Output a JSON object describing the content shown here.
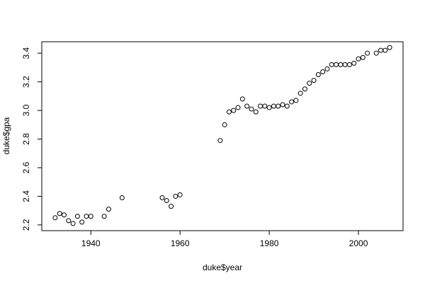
{
  "chart_data": {
    "type": "scatter",
    "title": "",
    "xlabel": "duke$year",
    "ylabel": "duke$gpa",
    "xlim": [
      1929,
      2010
    ],
    "ylim": [
      2.16,
      3.48
    ],
    "grid": false,
    "legend": "none",
    "point_style": "open-circle",
    "colors": {
      "marker": "#000000",
      "axis": "#000000",
      "background": "#ffffff"
    },
    "x_ticks": [
      1940,
      1960,
      1980,
      2000
    ],
    "y_ticks": [
      2.2,
      2.4,
      2.6,
      2.8,
      3.0,
      3.2,
      3.4
    ],
    "x_tick_labels": [
      "1940",
      "1960",
      "1980",
      "2000"
    ],
    "y_tick_labels": [
      "2.2",
      "2.4",
      "2.6",
      "2.8",
      "3.0",
      "3.2",
      "3.4"
    ],
    "points": [
      [
        1932,
        2.25
      ],
      [
        1933,
        2.28
      ],
      [
        1934,
        2.27
      ],
      [
        1935,
        2.23
      ],
      [
        1936,
        2.21
      ],
      [
        1937,
        2.26
      ],
      [
        1938,
        2.22
      ],
      [
        1939,
        2.26
      ],
      [
        1940,
        2.26
      ],
      [
        1943,
        2.26
      ],
      [
        1944,
        2.31
      ],
      [
        1947,
        2.39
      ],
      [
        1956,
        2.39
      ],
      [
        1957,
        2.37
      ],
      [
        1958,
        2.33
      ],
      [
        1959,
        2.4
      ],
      [
        1960,
        2.41
      ],
      [
        1969,
        2.79
      ],
      [
        1970,
        2.9
      ],
      [
        1971,
        2.99
      ],
      [
        1972,
        3.0
      ],
      [
        1973,
        3.02
      ],
      [
        1974,
        3.08
      ],
      [
        1975,
        3.03
      ],
      [
        1976,
        3.01
      ],
      [
        1977,
        2.99
      ],
      [
        1978,
        3.03
      ],
      [
        1979,
        3.03
      ],
      [
        1980,
        3.02
      ],
      [
        1981,
        3.03
      ],
      [
        1982,
        3.03
      ],
      [
        1983,
        3.04
      ],
      [
        1984,
        3.03
      ],
      [
        1985,
        3.06
      ],
      [
        1986,
        3.07
      ],
      [
        1987,
        3.12
      ],
      [
        1988,
        3.15
      ],
      [
        1989,
        3.19
      ],
      [
        1990,
        3.21
      ],
      [
        1991,
        3.25
      ],
      [
        1992,
        3.27
      ],
      [
        1993,
        3.29
      ],
      [
        1994,
        3.32
      ],
      [
        1995,
        3.32
      ],
      [
        1996,
        3.32
      ],
      [
        1997,
        3.32
      ],
      [
        1998,
        3.32
      ],
      [
        1999,
        3.33
      ],
      [
        2000,
        3.36
      ],
      [
        2001,
        3.37
      ],
      [
        2002,
        3.4
      ],
      [
        2004,
        3.4
      ],
      [
        2005,
        3.42
      ],
      [
        2006,
        3.42
      ],
      [
        2007,
        3.44
      ]
    ]
  }
}
